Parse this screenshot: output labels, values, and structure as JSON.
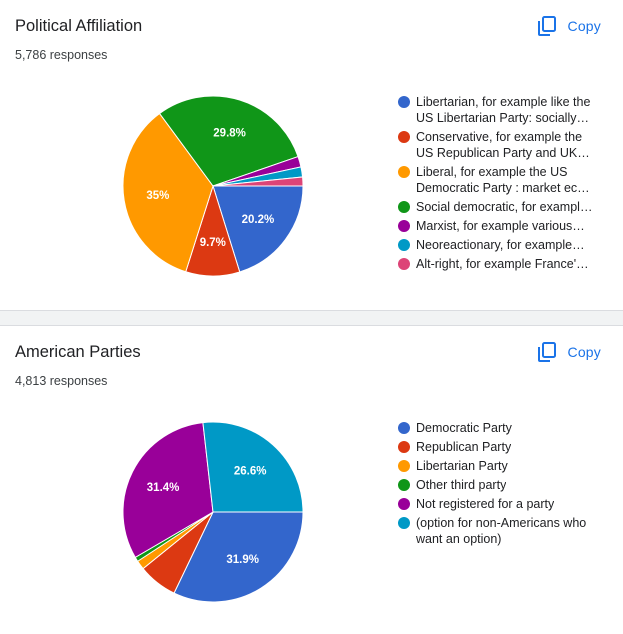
{
  "copy_label": "Copy",
  "cards": [
    {
      "title": "Political Affiliation",
      "responses": "5,786 responses",
      "chart_data": {
        "type": "pie",
        "legend_position": "right",
        "slices": [
          {
            "label": "Libertarian, for example like the US Libertarian Party: socially…",
            "value": 20.2,
            "display": "20.2%",
            "color": "#3366cc"
          },
          {
            "label": "Conservative, for example the US Republican Party and UK…",
            "value": 9.7,
            "display": "9.7%",
            "color": "#dc3912"
          },
          {
            "label": "Liberal, for example the US Democratic Party : market ec…",
            "value": 35,
            "display": "35%",
            "color": "#ff9900"
          },
          {
            "label": "Social democratic, for exampl…",
            "value": 29.8,
            "display": "29.8%",
            "color": "#109618"
          },
          {
            "label": "Marxist, for example various…",
            "value": 1.9,
            "display": "",
            "color": "#990099"
          },
          {
            "label": "Neoreactionary, for example…",
            "value": 1.8,
            "display": "",
            "color": "#0099c6"
          },
          {
            "label": "Alt-right, for example France'…",
            "value": 1.6,
            "display": "",
            "color": "#dd4477"
          }
        ]
      }
    },
    {
      "title": "American Parties",
      "responses": "4,813 responses",
      "chart_data": {
        "type": "pie",
        "legend_position": "right",
        "slices": [
          {
            "label": "Democratic Party",
            "value": 31.9,
            "display": "31.9%",
            "color": "#3366cc"
          },
          {
            "label": "Republican Party",
            "value": 7.0,
            "display": "",
            "color": "#dc3912"
          },
          {
            "label": "Libertarian Party",
            "value": 1.6,
            "display": "",
            "color": "#ff9900"
          },
          {
            "label": "Other third party",
            "value": 0.8,
            "display": "",
            "color": "#109618"
          },
          {
            "label": "Not registered for a party",
            "value": 31.4,
            "display": "31.4%",
            "color": "#990099"
          },
          {
            "label": "(option for non-Americans who want an option)",
            "value": 26.6,
            "display": "26.6%",
            "color": "#0099c6"
          }
        ]
      }
    }
  ]
}
